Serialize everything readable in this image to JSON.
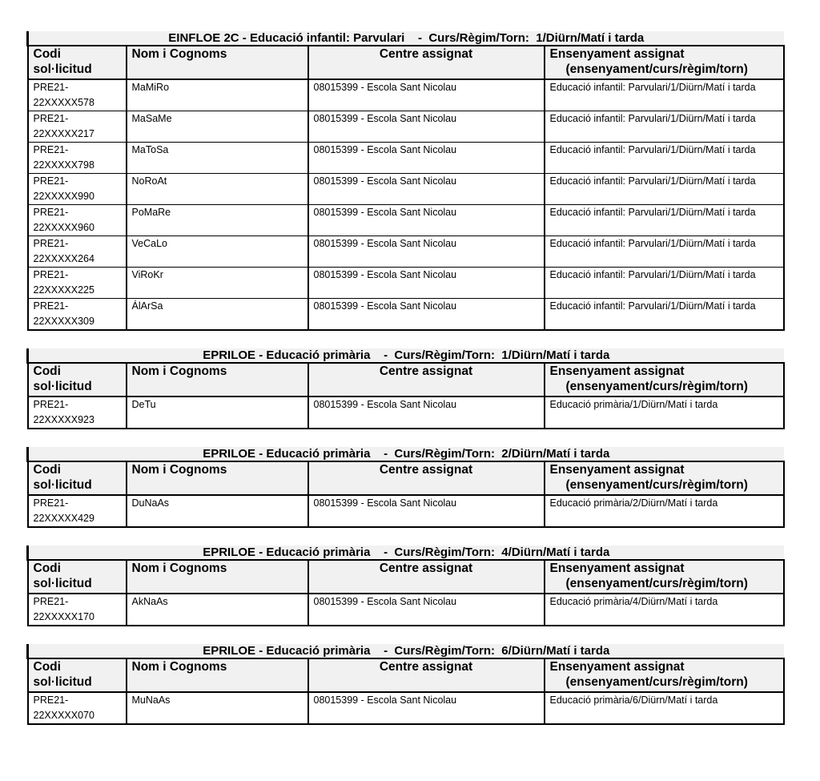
{
  "headers": {
    "codi": "Codi",
    "codi2": "sol·licitud",
    "nom": "Nom i Cognoms",
    "centre": "Centre assignat",
    "ens": "Ensenyament assignat",
    "ens2": "(ensenyament/curs/règim/torn)"
  },
  "tables": [
    {
      "title": "EINFLOE 2C - Educació infantil: Parvulari    -  Curs/Règim/Torn:  1/Diürn/Matí i tarda",
      "rows": [
        {
          "codi1": "PRE21-",
          "codi2": "22XXXXX578",
          "nom": "MaMiRo",
          "centre": "08015399 - Escola Sant Nicolau",
          "ens": "Educació infantil: Parvulari/1/Diürn/Matí i tarda"
        },
        {
          "codi1": "PRE21-",
          "codi2": "22XXXXX217",
          "nom": "MaSaMe",
          "centre": "08015399 - Escola Sant Nicolau",
          "ens": "Educació infantil: Parvulari/1/Diürn/Matí i tarda"
        },
        {
          "codi1": "PRE21-",
          "codi2": "22XXXXX798",
          "nom": "MaToSa",
          "centre": "08015399 - Escola Sant Nicolau",
          "ens": "Educació infantil: Parvulari/1/Diürn/Matí i tarda"
        },
        {
          "codi1": "PRE21-",
          "codi2": "22XXXXX990",
          "nom": "NoRoAt",
          "centre": "08015399 - Escola Sant Nicolau",
          "ens": "Educació infantil: Parvulari/1/Diürn/Matí i tarda"
        },
        {
          "codi1": "PRE21-",
          "codi2": "22XXXXX960",
          "nom": "PoMaRe",
          "centre": "08015399 - Escola Sant Nicolau",
          "ens": "Educació infantil: Parvulari/1/Diürn/Matí i tarda"
        },
        {
          "codi1": "PRE21-",
          "codi2": "22XXXXX264",
          "nom": "VeCaLo",
          "centre": "08015399 - Escola Sant Nicolau",
          "ens": "Educació infantil: Parvulari/1/Diürn/Matí i tarda"
        },
        {
          "codi1": "PRE21-",
          "codi2": "22XXXXX225",
          "nom": "ViRoKr",
          "centre": "08015399 - Escola Sant Nicolau",
          "ens": "Educació infantil: Parvulari/1/Diürn/Matí i tarda"
        },
        {
          "codi1": "PRE21-",
          "codi2": "22XXXXX309",
          "nom": "ÁlArSa",
          "centre": "08015399 - Escola Sant Nicolau",
          "ens": "Educació infantil: Parvulari/1/Diürn/Matí i tarda"
        }
      ]
    },
    {
      "title": "EPRILOE - Educació primària    -  Curs/Règim/Torn:  1/Diürn/Matí i tarda",
      "rows": [
        {
          "codi1": "PRE21-",
          "codi2": "22XXXXX923",
          "nom": "DeTu",
          "centre": "08015399 - Escola Sant Nicolau",
          "ens": "Educació primària/1/Diürn/Matí i tarda"
        }
      ]
    },
    {
      "title": "EPRILOE - Educació primària    -  Curs/Règim/Torn:  2/Diürn/Matí i tarda",
      "rows": [
        {
          "codi1": "PRE21-",
          "codi2": "22XXXXX429",
          "nom": "DuNaAs",
          "centre": "08015399 - Escola Sant Nicolau",
          "ens": "Educació primària/2/Diürn/Matí i tarda"
        }
      ]
    },
    {
      "title": "EPRILOE - Educació primària    -  Curs/Règim/Torn:  4/Diürn/Matí i tarda",
      "rows": [
        {
          "codi1": "PRE21-",
          "codi2": "22XXXXX170",
          "nom": "AkNaAs",
          "centre": "08015399 - Escola Sant Nicolau",
          "ens": "Educació primària/4/Diürn/Matí i tarda"
        }
      ]
    },
    {
      "title": "EPRILOE - Educació primària    -  Curs/Règim/Torn:  6/Diürn/Matí i tarda",
      "rows": [
        {
          "codi1": "PRE21-",
          "codi2": "22XXXXX070",
          "nom": "MuNaAs",
          "centre": "08015399 - Escola Sant Nicolau",
          "ens": "Educació primària/6/Diürn/Matí i tarda"
        }
      ]
    }
  ]
}
